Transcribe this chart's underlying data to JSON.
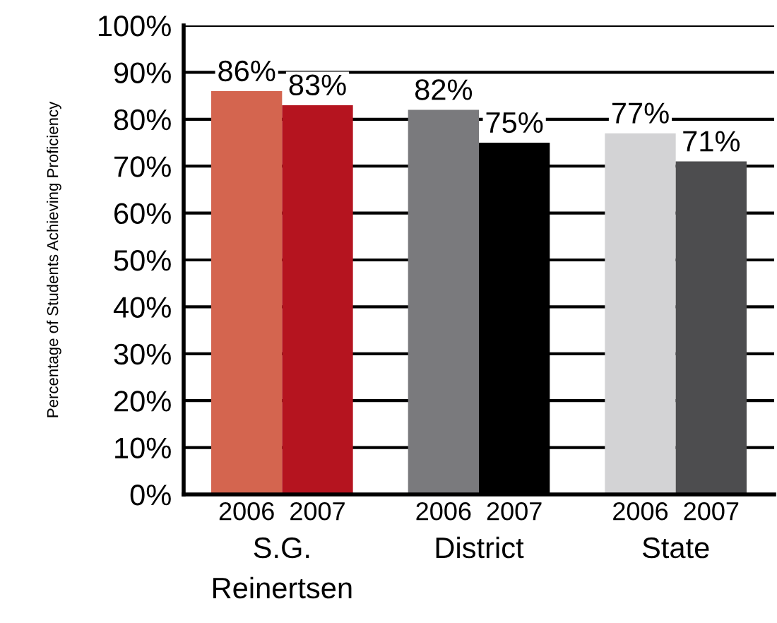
{
  "chart_data": {
    "type": "bar",
    "ylabel": "Percentage of Students Achieving Proficiency",
    "categories": [
      "S.G.\nReinertsen",
      "District",
      "State"
    ],
    "series": [
      {
        "name": "2006",
        "colors": [
          "#d4654f",
          "#7a7a7d",
          "#d3d3d5"
        ],
        "values": [
          86,
          82,
          77
        ],
        "value_labels": [
          "86%",
          "82%",
          "77%"
        ]
      },
      {
        "name": "2007",
        "colors": [
          "#b5141f",
          "#000000",
          "#4d4d4f"
        ],
        "values": [
          83,
          75,
          71
        ],
        "value_labels": [
          "83%",
          "75%",
          "71%"
        ]
      }
    ],
    "ylim": [
      0,
      100
    ],
    "yticks": [
      {
        "value": 0,
        "label": "0%"
      },
      {
        "value": 10,
        "label": "10%"
      },
      {
        "value": 20,
        "label": "20%"
      },
      {
        "value": 30,
        "label": "30%"
      },
      {
        "value": 40,
        "label": "40%"
      },
      {
        "value": 50,
        "label": "50%"
      },
      {
        "value": 60,
        "label": "60%"
      },
      {
        "value": 70,
        "label": "70%"
      },
      {
        "value": 80,
        "label": "80%"
      },
      {
        "value": 90,
        "label": "90%"
      },
      {
        "value": 100,
        "label": "100%"
      }
    ],
    "grid": "y",
    "legend": false
  }
}
